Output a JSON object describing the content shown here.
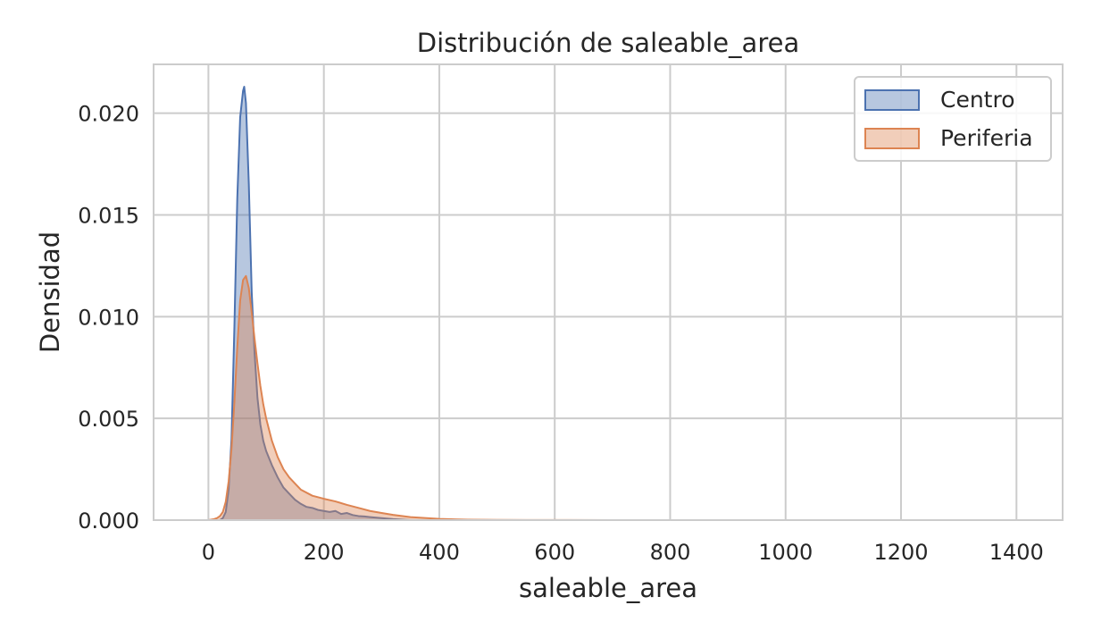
{
  "chart_data": {
    "type": "area",
    "title": "Distribución de saleable_area",
    "xlabel": "saleable_area",
    "ylabel": "Densidad",
    "xlim": [
      -95,
      1480
    ],
    "ylim": [
      0,
      0.0224
    ],
    "xticks": [
      0,
      200,
      400,
      600,
      800,
      1000,
      1200,
      1400
    ],
    "xtick_labels": [
      "0",
      "200",
      "400",
      "600",
      "800",
      "1000",
      "1200",
      "1400"
    ],
    "yticks": [
      0,
      0.005,
      0.01,
      0.015,
      0.02
    ],
    "ytick_labels": [
      "0.000",
      "0.005",
      "0.010",
      "0.015",
      "0.020"
    ],
    "grid": true,
    "legend_position": "top-right",
    "series": [
      {
        "name": "Centro",
        "color": "#4C72B0",
        "x": [
          20,
          25,
          30,
          35,
          40,
          45,
          50,
          55,
          60,
          62,
          65,
          70,
          75,
          80,
          85,
          90,
          95,
          100,
          110,
          120,
          130,
          140,
          150,
          160,
          170,
          180,
          190,
          200,
          210,
          220,
          230,
          240,
          250,
          260,
          270,
          280,
          300,
          320,
          350
        ],
        "values": [
          0.0,
          0.0001,
          0.0004,
          0.0015,
          0.004,
          0.0095,
          0.0158,
          0.0198,
          0.0211,
          0.0213,
          0.0205,
          0.0165,
          0.0112,
          0.0082,
          0.006,
          0.0047,
          0.0039,
          0.0034,
          0.0027,
          0.0021,
          0.0016,
          0.0013,
          0.001,
          0.0008,
          0.00065,
          0.0006,
          0.0005,
          0.00045,
          0.0004,
          0.00045,
          0.0003,
          0.00035,
          0.00025,
          0.0002,
          0.00018,
          0.00015,
          0.0001,
          5e-05,
          0.0
        ]
      },
      {
        "name": "Periferia",
        "color": "#DD8452",
        "x": [
          0,
          10,
          15,
          20,
          25,
          30,
          35,
          40,
          45,
          50,
          55,
          60,
          65,
          70,
          75,
          80,
          85,
          90,
          95,
          100,
          110,
          120,
          130,
          140,
          150,
          160,
          180,
          200,
          220,
          240,
          260,
          280,
          300,
          320,
          350,
          400,
          450,
          500,
          550,
          600,
          700,
          800,
          900,
          1000,
          1100,
          1200,
          1300,
          1400
        ],
        "values": [
          0.0,
          5e-05,
          0.0001,
          0.0002,
          0.0004,
          0.0009,
          0.0019,
          0.0035,
          0.0058,
          0.0085,
          0.0108,
          0.0118,
          0.012,
          0.0114,
          0.0102,
          0.0089,
          0.0077,
          0.0066,
          0.0057,
          0.005,
          0.0039,
          0.0031,
          0.0025,
          0.0021,
          0.0018,
          0.0015,
          0.0012,
          0.00105,
          0.00092,
          0.00075,
          0.0006,
          0.00045,
          0.00035,
          0.00026,
          0.00015,
          6e-05,
          2e-05,
          1e-05,
          5e-06,
          3e-06,
          2e-06,
          1e-06,
          1e-06,
          1e-06,
          5e-07,
          5e-07,
          3e-07,
          0.0
        ]
      }
    ]
  }
}
